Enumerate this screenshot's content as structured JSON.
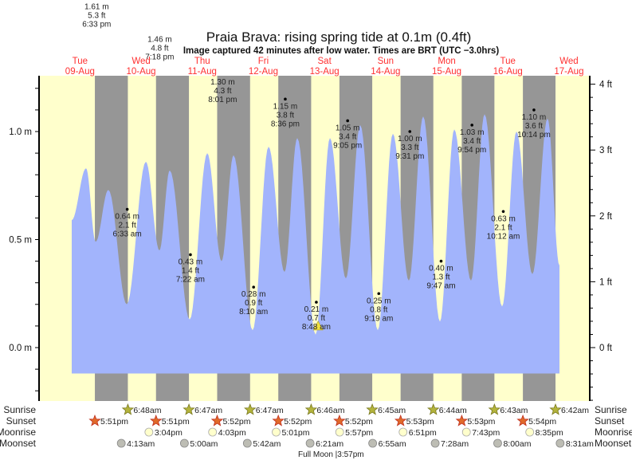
{
  "chart_data": {
    "type": "area",
    "title": "Praia Brava: rising  spring tide at 0.1m (0.4ft)",
    "subtitle": "Image captured 42 minutes after low water. Times are BRT (UTC −3.0hrs)",
    "x_units": "days since 09-Aug 00:00 (BRT)",
    "xlim": [
      -0.17,
      8.84
    ],
    "ylim_m": [
      -0.25,
      1.26
    ],
    "fill_bottom_m": -0.12,
    "left_axis": {
      "unit": "m",
      "ticks": [
        0.0,
        0.5,
        1.0
      ],
      "tick_labels": [
        "0.0 m",
        "0.5 m",
        "1.0 m"
      ]
    },
    "right_axis": {
      "unit": "ft",
      "ticks": [
        0,
        1,
        2,
        3,
        4
      ],
      "tick_labels": [
        "0 ft",
        "1 ft",
        "2 ft",
        "3 ft",
        "4 ft"
      ]
    },
    "days": [
      {
        "dow": "Tue",
        "date": "09-Aug"
      },
      {
        "dow": "Wed",
        "date": "10-Aug"
      },
      {
        "dow": "Thu",
        "date": "11-Aug"
      },
      {
        "dow": "Fri",
        "date": "12-Aug"
      },
      {
        "dow": "Sat",
        "date": "13-Aug"
      },
      {
        "dow": "Sun",
        "date": "14-Aug"
      },
      {
        "dow": "Mon",
        "date": "15-Aug"
      },
      {
        "dow": "Tue",
        "date": "16-Aug"
      },
      {
        "dow": "Wed",
        "date": "17-Aug"
      }
    ],
    "curve": {
      "t": [
        0.365,
        0.6,
        0.756,
        0.965,
        1.265,
        1.578,
        1.799,
        1.969,
        2.295,
        2.582,
        2.816,
        3.012,
        3.325,
        3.585,
        3.846,
        4.055,
        4.355,
        4.589,
        4.85,
        5.085,
        5.372,
        5.619,
        5.88,
        6.115,
        6.389,
        6.623,
        6.897,
        7.119,
        7.405,
        7.64,
        7.901,
        8.149,
        8.344
      ],
      "m": [
        0.59,
        0.83,
        0.49,
        0.73,
        0.2,
        0.86,
        0.45,
        0.82,
        0.13,
        0.9,
        0.4,
        0.89,
        0.08,
        0.93,
        0.35,
        0.97,
        0.06,
        0.97,
        0.32,
        1.03,
        0.08,
        0.99,
        0.31,
        1.07,
        0.12,
        1.01,
        0.31,
        1.08,
        0.19,
        1.0,
        0.34,
        1.06,
        0.38
      ]
    },
    "tide_events": [
      {
        "day": 0,
        "time": "6:33 pm",
        "m": "1.61 m",
        "ft": "5.3 ft",
        "value": 1.61
      },
      {
        "day": 1,
        "time": "6:33 am",
        "m": "0.64 m",
        "ft": "2.1 ft",
        "value": 0.64
      },
      {
        "day": 1,
        "time": "7:18 pm",
        "m": "1.46 m",
        "ft": "4.8 ft",
        "value": 1.46
      },
      {
        "day": 2,
        "time": "7:22 am",
        "m": "0.43 m",
        "ft": "1.4 ft",
        "value": 0.43
      },
      {
        "day": 2,
        "time": "8:01 pm",
        "m": "1.30 m",
        "ft": "4.3 ft",
        "value": 1.3
      },
      {
        "day": 3,
        "time": "8:10 am",
        "m": "0.28 m",
        "ft": "0.9 ft",
        "value": 0.28
      },
      {
        "day": 3,
        "time": "8:36 pm",
        "m": "1.15 m",
        "ft": "3.8 ft",
        "value": 1.15
      },
      {
        "day": 4,
        "time": "8:48 am",
        "m": "0.21 m",
        "ft": "0.7 ft",
        "value": 0.21
      },
      {
        "day": 4,
        "time": "9:05 pm",
        "m": "1.05 m",
        "ft": "3.4 ft",
        "value": 1.05
      },
      {
        "day": 5,
        "time": "9:19 am",
        "m": "0.25 m",
        "ft": "0.8 ft",
        "value": 0.25
      },
      {
        "day": 5,
        "time": "9:31 pm",
        "m": "1.00 m",
        "ft": "3.3 ft",
        "value": 1.0
      },
      {
        "day": 6,
        "time": "9:47 am",
        "m": "0.40 m",
        "ft": "1.3 ft",
        "value": 0.4
      },
      {
        "day": 6,
        "time": "9:54 pm",
        "m": "1.03 m",
        "ft": "3.4 ft",
        "value": 1.03
      },
      {
        "day": 7,
        "time": "10:12 am",
        "m": "0.63 m",
        "ft": "2.1 ft",
        "value": 0.63
      },
      {
        "day": 7,
        "time": "10:14 pm",
        "m": "1.10 m",
        "ft": "3.6 ft",
        "value": 1.1
      }
    ],
    "current": {
      "t": 4.396,
      "m": 0.1
    },
    "rows": {
      "sunrise": "Sunrise",
      "sunset": "Sunset",
      "moonrise": "Moonrise",
      "moonset": "Moonset"
    },
    "sunrise": {
      "start_day": 1,
      "times": [
        "6:48am",
        "6:47am",
        "6:47am",
        "6:46am",
        "6:45am",
        "6:44am",
        "6:43am",
        "6:42am"
      ]
    },
    "sunset": {
      "start_day": 0,
      "times": [
        "5:51pm",
        "5:51pm",
        "5:52pm",
        "5:52pm",
        "5:52pm",
        "5:53pm",
        "5:53pm",
        "5:54pm"
      ]
    },
    "moonrise": {
      "start_day": 1,
      "times": [
        "3:04pm",
        "4:03pm",
        "5:01pm",
        "5:57pm",
        "6:51pm",
        "7:43pm",
        "8:35pm"
      ]
    },
    "moonset": {
      "start_day": 1,
      "times": [
        "4:13am",
        "5:00am",
        "5:42am",
        "6:21am",
        "6:55am",
        "7:28am",
        "8:00am",
        "8:31am"
      ]
    },
    "moon_phase": "Full Moon |3:57pm",
    "colors": {
      "day": "#ffffcc",
      "night": "#969696",
      "water": "#a2b4fc",
      "day_label": "#ff3030",
      "sunrise": "#b4b43c",
      "sunset": "#e06a2a",
      "moonrise": "#ffffcc",
      "moonset": "#bdbdb4"
    }
  }
}
